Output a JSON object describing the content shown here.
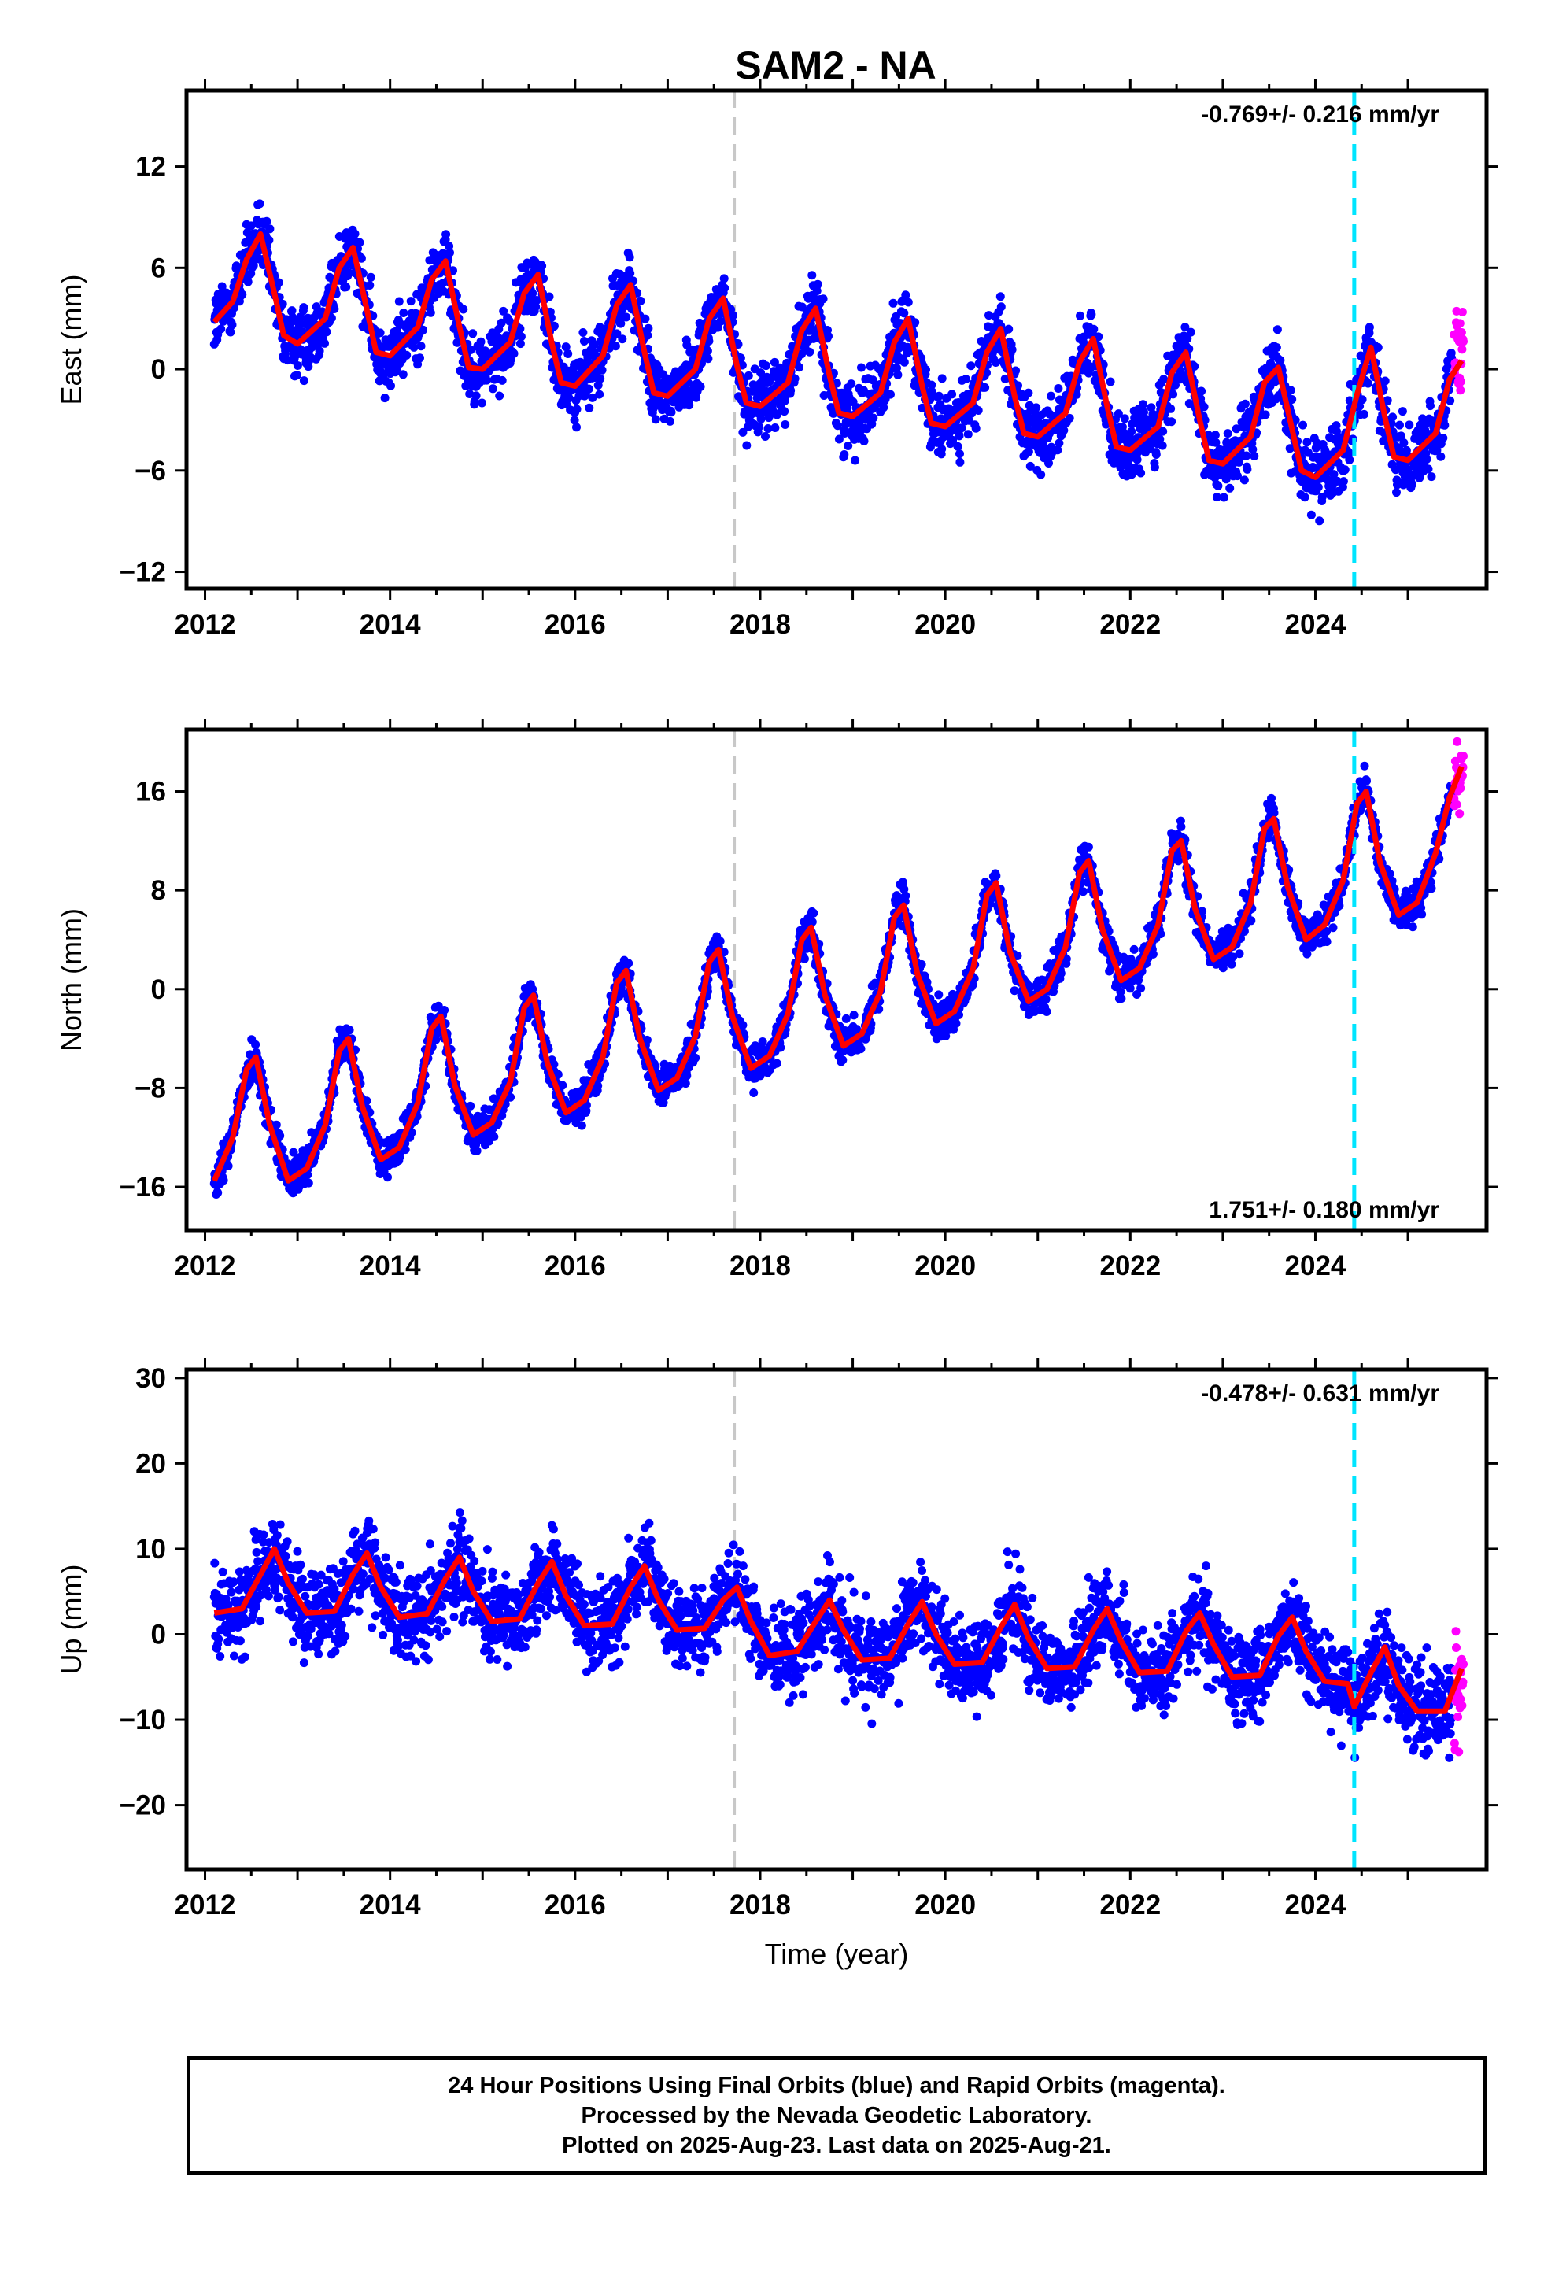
{
  "title": "SAM2 - NA",
  "footer": {
    "line1": "24 Hour Positions Using Final Orbits (blue) and Rapid Orbits (magenta).",
    "line2": "Processed by the Nevada Geodetic Laboratory.",
    "line3": "Plotted on 2025-Aug-23. Last data on 2025-Aug-21."
  },
  "colors": {
    "final": "#0000ff",
    "rapid": "#ff00ff",
    "model": "#ff0000",
    "gray_line": "#c8c8c8",
    "cyan_line": "#00e5ff"
  },
  "chart_data": [
    {
      "type": "scatter",
      "ylabel": "East (mm)",
      "xlabel": "",
      "xlim": [
        2011.8,
        2025.85
      ],
      "ylim": [
        -13,
        16.5
      ],
      "yticks": [
        -12,
        -6,
        0,
        6,
        12
      ],
      "xticks": [
        2012,
        2014,
        2016,
        2018,
        2020,
        2022,
        2024
      ],
      "rate": "-0.769+/- 0.216 mm/yr",
      "rate_position": "top-right",
      "vlines": {
        "gray": 2017.72,
        "cyan": 2024.42
      },
      "model": {
        "x": [
          2012.1,
          2012.3,
          2012.45,
          2012.6,
          2012.75,
          2012.85,
          2013.0,
          2013.3,
          2013.45,
          2013.6,
          2013.75,
          2013.85,
          2014.0,
          2014.3,
          2014.45,
          2014.6,
          2014.75,
          2014.85,
          2015.0,
          2015.3,
          2015.45,
          2015.6,
          2015.75,
          2015.85,
          2016.0,
          2016.3,
          2016.45,
          2016.6,
          2016.75,
          2016.85,
          2017.0,
          2017.3,
          2017.45,
          2017.6,
          2017.75,
          2017.85,
          2018.0,
          2018.3,
          2018.45,
          2018.6,
          2018.75,
          2018.85,
          2019.0,
          2019.3,
          2019.45,
          2019.6,
          2019.75,
          2019.85,
          2020.0,
          2020.3,
          2020.45,
          2020.6,
          2020.75,
          2020.85,
          2021.0,
          2021.3,
          2021.45,
          2021.6,
          2021.75,
          2021.85,
          2022.0,
          2022.3,
          2022.45,
          2022.6,
          2022.75,
          2022.85,
          2023.0,
          2023.3,
          2023.45,
          2023.6,
          2023.75,
          2023.85,
          2024.0,
          2024.3,
          2024.45,
          2024.6,
          2024.75,
          2024.85,
          2025.0,
          2025.3,
          2025.45,
          2025.58
        ],
        "y": [
          2.8,
          4.0,
          6.5,
          8.0,
          4.5,
          2.0,
          1.5,
          3.0,
          6.0,
          7.2,
          3.5,
          1.0,
          0.8,
          2.5,
          5.3,
          6.4,
          2.5,
          0.1,
          0.0,
          1.6,
          4.5,
          5.6,
          1.5,
          -0.8,
          -1.0,
          0.8,
          3.8,
          5.0,
          1.0,
          -1.4,
          -1.6,
          0.0,
          3.0,
          4.2,
          0.2,
          -2.0,
          -2.2,
          -0.8,
          2.3,
          3.6,
          -0.4,
          -2.6,
          -2.8,
          -1.4,
          1.6,
          3.0,
          -1.0,
          -3.2,
          -3.4,
          -2.0,
          1.0,
          2.4,
          -1.6,
          -3.8,
          -4.0,
          -2.6,
          0.4,
          1.8,
          -2.2,
          -4.6,
          -4.8,
          -3.4,
          -0.2,
          1.0,
          -3.0,
          -5.4,
          -5.6,
          -4.0,
          -0.8,
          0.1,
          -3.6,
          -6.0,
          -6.4,
          -4.8,
          -1.5,
          1.3,
          -2.8,
          -5.2,
          -5.4,
          -3.8,
          -0.6,
          0.5
        ]
      }
    },
    {
      "type": "scatter",
      "ylabel": "North (mm)",
      "xlabel": "",
      "xlim": [
        2011.8,
        2025.85
      ],
      "ylim": [
        -19.5,
        21
      ],
      "yticks": [
        -16,
        -8,
        0,
        8,
        16
      ],
      "xticks": [
        2012,
        2014,
        2016,
        2018,
        2020,
        2022,
        2024
      ],
      "rate": "1.751+/- 0.180 mm/yr",
      "rate_position": "bottom-right",
      "vlines": {
        "gray": 2017.72,
        "cyan": 2024.42
      },
      "model": {
        "x": [
          2012.1,
          2012.3,
          2012.45,
          2012.55,
          2012.7,
          2012.9,
          2013.1,
          2013.3,
          2013.45,
          2013.55,
          2013.7,
          2013.9,
          2014.1,
          2014.3,
          2014.45,
          2014.55,
          2014.7,
          2014.9,
          2015.1,
          2015.3,
          2015.45,
          2015.55,
          2015.7,
          2015.9,
          2016.1,
          2016.3,
          2016.45,
          2016.55,
          2016.7,
          2016.9,
          2017.1,
          2017.3,
          2017.45,
          2017.55,
          2017.7,
          2017.9,
          2018.1,
          2018.3,
          2018.45,
          2018.55,
          2018.7,
          2018.9,
          2019.1,
          2019.3,
          2019.45,
          2019.55,
          2019.7,
          2019.9,
          2020.1,
          2020.3,
          2020.45,
          2020.55,
          2020.7,
          2020.9,
          2021.1,
          2021.3,
          2021.45,
          2021.55,
          2021.7,
          2021.9,
          2022.1,
          2022.3,
          2022.45,
          2022.55,
          2022.7,
          2022.9,
          2023.1,
          2023.3,
          2023.45,
          2023.55,
          2023.7,
          2023.9,
          2024.1,
          2024.3,
          2024.45,
          2024.55,
          2024.7,
          2024.9,
          2025.1,
          2025.3,
          2025.45,
          2025.58
        ],
        "y": [
          -15.5,
          -12.0,
          -6.5,
          -5.5,
          -11.0,
          -15.5,
          -14.5,
          -11.0,
          -5.0,
          -4.0,
          -9.5,
          -13.8,
          -12.8,
          -9.2,
          -3.2,
          -2.2,
          -7.8,
          -11.8,
          -10.8,
          -7.5,
          -1.5,
          -0.5,
          -6.0,
          -10.0,
          -9.0,
          -5.5,
          0.5,
          1.5,
          -4.0,
          -8.2,
          -7.2,
          -3.8,
          2.2,
          3.2,
          -2.2,
          -6.4,
          -5.4,
          -2.0,
          4.0,
          5.0,
          -0.5,
          -4.6,
          -3.6,
          -0.2,
          5.8,
          6.8,
          1.2,
          -2.8,
          -1.8,
          1.6,
          7.6,
          8.6,
          3.0,
          -1.0,
          0.0,
          3.4,
          9.4,
          10.4,
          4.8,
          0.7,
          1.7,
          5.2,
          11.2,
          12.0,
          6.5,
          2.4,
          3.4,
          7.0,
          13.0,
          13.8,
          8.3,
          4.0,
          5.2,
          8.8,
          15.0,
          16.0,
          10.2,
          6.0,
          7.0,
          11.0,
          15.5,
          18.0
        ]
      }
    },
    {
      "type": "scatter",
      "ylabel": "Up (mm)",
      "xlabel": "Time (year)",
      "xlim": [
        2011.8,
        2025.85
      ],
      "ylim": [
        -27.5,
        31
      ],
      "yticks": [
        -20,
        -10,
        0,
        10,
        20,
        30
      ],
      "xticks": [
        2012,
        2014,
        2016,
        2018,
        2020,
        2022,
        2024
      ],
      "rate": "-0.478+/- 0.631 mm/yr",
      "rate_position": "top-right",
      "vlines": {
        "gray": 2017.72,
        "cyan": 2024.42
      },
      "model": {
        "x": [
          2012.1,
          2012.4,
          2012.6,
          2012.75,
          2012.9,
          2013.1,
          2013.4,
          2013.6,
          2013.75,
          2013.9,
          2014.1,
          2014.4,
          2014.6,
          2014.75,
          2014.9,
          2015.1,
          2015.4,
          2015.6,
          2015.75,
          2015.9,
          2016.1,
          2016.4,
          2016.6,
          2016.75,
          2016.9,
          2017.1,
          2017.4,
          2017.6,
          2017.75,
          2017.9,
          2018.1,
          2018.4,
          2018.6,
          2018.75,
          2018.9,
          2019.1,
          2019.4,
          2019.6,
          2019.75,
          2019.9,
          2020.1,
          2020.4,
          2020.6,
          2020.75,
          2020.9,
          2021.1,
          2021.4,
          2021.6,
          2021.75,
          2021.9,
          2022.1,
          2022.4,
          2022.6,
          2022.75,
          2022.9,
          2023.1,
          2023.4,
          2023.6,
          2023.75,
          2023.9,
          2024.1,
          2024.35,
          2024.42,
          2024.6,
          2024.75,
          2024.9,
          2025.1,
          2025.4,
          2025.58
        ],
        "y": [
          2.5,
          3.0,
          7.0,
          10.0,
          6.0,
          2.5,
          2.7,
          7.0,
          9.5,
          5.5,
          2.0,
          2.4,
          6.5,
          9.0,
          5.0,
          1.5,
          1.8,
          6.0,
          8.5,
          4.5,
          1.0,
          1.2,
          5.5,
          8.0,
          4.0,
          0.5,
          0.7,
          4.0,
          5.5,
          1.5,
          -2.5,
          -2.0,
          1.5,
          4.0,
          0.5,
          -3.0,
          -2.8,
          1.2,
          3.8,
          0.0,
          -3.5,
          -3.3,
          0.8,
          3.5,
          -0.5,
          -4.0,
          -3.8,
          0.5,
          3.0,
          -0.8,
          -4.5,
          -4.3,
          0.3,
          2.5,
          -1.2,
          -5.0,
          -4.8,
          -0.2,
          2.0,
          -2.0,
          -5.5,
          -5.8,
          -8.5,
          -4.5,
          -1.5,
          -6.0,
          -9.0,
          -9.0,
          -4.0
        ]
      }
    }
  ]
}
